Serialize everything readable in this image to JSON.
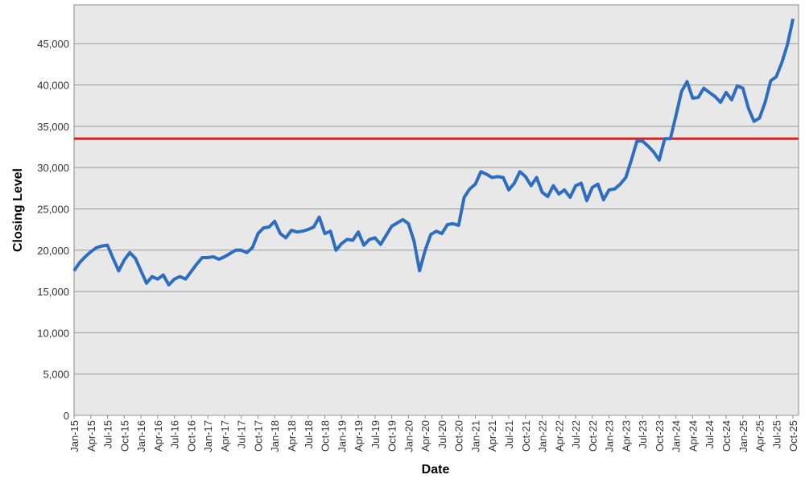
{
  "chart_data": {
    "type": "line",
    "x_label": "Date",
    "y_label": "Closing Level",
    "x": [
      "2015-01",
      "2015-02",
      "2015-03",
      "2015-04",
      "2015-05",
      "2015-06",
      "2015-07",
      "2015-08",
      "2015-09",
      "2015-10",
      "2015-11",
      "2015-12",
      "2016-01",
      "2016-02",
      "2016-03",
      "2016-04",
      "2016-05",
      "2016-06",
      "2016-07",
      "2016-08",
      "2016-09",
      "2016-10",
      "2016-11",
      "2016-12",
      "2017-01",
      "2017-02",
      "2017-03",
      "2017-04",
      "2017-05",
      "2017-06",
      "2017-07",
      "2017-08",
      "2017-09",
      "2017-10",
      "2017-11",
      "2017-12",
      "2018-01",
      "2018-02",
      "2018-03",
      "2018-04",
      "2018-05",
      "2018-06",
      "2018-07",
      "2018-08",
      "2018-09",
      "2018-10",
      "2018-11",
      "2018-12",
      "2019-01",
      "2019-02",
      "2019-03",
      "2019-04",
      "2019-05",
      "2019-06",
      "2019-07",
      "2019-08",
      "2019-09",
      "2019-10",
      "2019-11",
      "2019-12",
      "2020-01",
      "2020-02",
      "2020-03",
      "2020-04",
      "2020-05",
      "2020-06",
      "2020-07",
      "2020-08",
      "2020-09",
      "2020-10",
      "2020-11",
      "2020-12",
      "2021-01",
      "2021-02",
      "2021-03",
      "2021-04",
      "2021-05",
      "2021-06",
      "2021-07",
      "2021-08",
      "2021-09",
      "2021-10",
      "2021-11",
      "2021-12",
      "2022-01",
      "2022-02",
      "2022-03",
      "2022-04",
      "2022-05",
      "2022-06",
      "2022-07",
      "2022-08",
      "2022-09",
      "2022-10",
      "2022-11",
      "2022-12",
      "2023-01",
      "2023-02",
      "2023-03",
      "2023-04",
      "2023-05",
      "2023-06",
      "2023-07",
      "2023-08",
      "2023-09",
      "2023-10",
      "2023-11",
      "2023-12",
      "2024-01",
      "2024-02",
      "2024-03",
      "2024-04",
      "2024-05",
      "2024-06",
      "2024-07",
      "2024-08",
      "2024-09",
      "2024-10",
      "2024-11",
      "2024-12",
      "2025-01",
      "2025-02",
      "2025-03",
      "2025-04",
      "2025-05",
      "2025-06",
      "2025-07",
      "2025-08",
      "2025-09",
      "2025-10"
    ],
    "series": [
      {
        "color": "#2f6ebf",
        "values": [
          17500,
          18500,
          19200,
          19800,
          20300,
          20500,
          20600,
          19000,
          17500,
          18800,
          19700,
          19000,
          17500,
          16000,
          16800,
          16500,
          17000,
          15800,
          16500,
          16800,
          16500,
          17400,
          18300,
          19100,
          19100,
          19200,
          18900,
          19200,
          19600,
          20000,
          20000,
          19700,
          20300,
          22000,
          22700,
          22800,
          23500,
          22000,
          21500,
          22400,
          22200,
          22300,
          22500,
          22800,
          24000,
          22000,
          22300,
          20000,
          20800,
          21300,
          21200,
          22200,
          20600,
          21300,
          21500,
          20700,
          21800,
          22900,
          23300,
          23700,
          23200,
          21100,
          17500,
          20000,
          21900,
          22300,
          22000,
          23100,
          23200,
          23000,
          26400,
          27400,
          28000,
          29500,
          29200,
          28800,
          28900,
          28800,
          27300,
          28100,
          29500,
          28900,
          27800,
          28800,
          27000,
          26500,
          27800,
          26800,
          27300,
          26400,
          27800,
          28100,
          26000,
          27600,
          28000,
          26100,
          27300,
          27400,
          28000,
          28800,
          30900,
          33200,
          33200,
          32600,
          31900,
          30900,
          33500,
          33500,
          36300,
          39200,
          40400,
          38400,
          38500,
          39600,
          39100,
          38600,
          37900,
          39100,
          38200,
          39900,
          39600,
          37200,
          35600,
          36000,
          37900,
          40500,
          41000,
          42700,
          44900,
          48000
        ]
      }
    ],
    "hline": {
      "value": 33500,
      "color": "#e02020"
    },
    "xlim": [
      "2015-01",
      "2025-11"
    ],
    "xticks": [
      {
        "value": "2015-01",
        "label": "Jan-15"
      },
      {
        "value": "2015-04",
        "label": "Apr-15"
      },
      {
        "value": "2015-07",
        "label": "Jul-15"
      },
      {
        "value": "2015-10",
        "label": "Oct-15"
      },
      {
        "value": "2016-01",
        "label": "Jan-16"
      },
      {
        "value": "2016-04",
        "label": "Apr-16"
      },
      {
        "value": "2016-07",
        "label": "Jul-16"
      },
      {
        "value": "2016-10",
        "label": "Oct-16"
      },
      {
        "value": "2017-01",
        "label": "Jan-17"
      },
      {
        "value": "2017-04",
        "label": "Apr-17"
      },
      {
        "value": "2017-07",
        "label": "Jul-17"
      },
      {
        "value": "2017-10",
        "label": "Oct-17"
      },
      {
        "value": "2018-01",
        "label": "Jan-18"
      },
      {
        "value": "2018-04",
        "label": "Apr-18"
      },
      {
        "value": "2018-07",
        "label": "Jul-18"
      },
      {
        "value": "2018-10",
        "label": "Oct-18"
      },
      {
        "value": "2019-01",
        "label": "Jan-19"
      },
      {
        "value": "2019-04",
        "label": "Apr-19"
      },
      {
        "value": "2019-07",
        "label": "Jul-19"
      },
      {
        "value": "2019-10",
        "label": "Oct-19"
      },
      {
        "value": "2020-01",
        "label": "Jan-20"
      },
      {
        "value": "2020-04",
        "label": "Apr-20"
      },
      {
        "value": "2020-07",
        "label": "Jul-20"
      },
      {
        "value": "2020-10",
        "label": "Oct-20"
      },
      {
        "value": "2021-01",
        "label": "Jan-21"
      },
      {
        "value": "2021-04",
        "label": "Apr-21"
      },
      {
        "value": "2021-07",
        "label": "Jul-21"
      },
      {
        "value": "2021-10",
        "label": "Oct-21"
      },
      {
        "value": "2022-01",
        "label": "Jan-22"
      },
      {
        "value": "2022-04",
        "label": "Apr-22"
      },
      {
        "value": "2022-07",
        "label": "Jul-22"
      },
      {
        "value": "2022-10",
        "label": "Oct-22"
      },
      {
        "value": "2023-01",
        "label": "Jan-23"
      },
      {
        "value": "2023-04",
        "label": "Apr-23"
      },
      {
        "value": "2023-07",
        "label": "Jul-23"
      },
      {
        "value": "2023-10",
        "label": "Oct-23"
      },
      {
        "value": "2024-01",
        "label": "Jan-24"
      },
      {
        "value": "2024-04",
        "label": "Apr-24"
      },
      {
        "value": "2024-07",
        "label": "Jul-24"
      },
      {
        "value": "2024-10",
        "label": "Oct-24"
      },
      {
        "value": "2025-01",
        "label": "Jan-25"
      },
      {
        "value": "2025-04",
        "label": "Apr-25"
      },
      {
        "value": "2025-07",
        "label": "Jul-25"
      },
      {
        "value": "2025-10",
        "label": "Oct-25"
      }
    ],
    "ylim": [
      0,
      49700
    ],
    "yticks": [
      0,
      {
        "value": 5000,
        "label": "5,000"
      },
      {
        "value": 10000,
        "label": "10,000"
      },
      {
        "value": 15000,
        "label": "15,000"
      },
      {
        "value": 20000,
        "label": "20,000"
      },
      {
        "value": 25000,
        "label": "25,000"
      },
      {
        "value": 30000,
        "label": "30,000"
      },
      {
        "value": 35000,
        "label": "35,000"
      },
      {
        "value": 40000,
        "label": "40,000"
      },
      {
        "value": 45000,
        "label": "45,000"
      }
    ],
    "grid": true
  }
}
